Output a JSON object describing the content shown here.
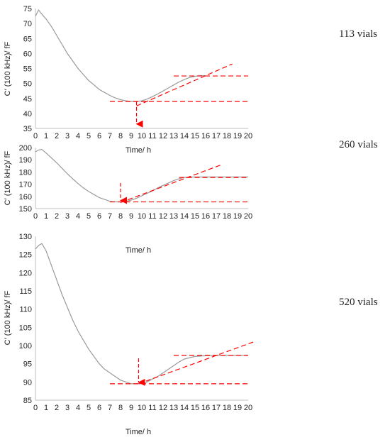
{
  "chart_data": [
    {
      "type": "line",
      "title": "",
      "label": "113 vials",
      "xlabel": "Time/ h",
      "ylabel": "C′ (100 kHz)/ fF",
      "xlim": [
        0,
        20
      ],
      "ylim": [
        35,
        75
      ],
      "xticks": [
        0,
        1,
        2,
        3,
        4,
        5,
        6,
        7,
        8,
        9,
        10,
        11,
        12,
        13,
        14,
        15,
        16,
        17,
        18,
        19,
        20
      ],
      "yticks": [
        35,
        40,
        45,
        50,
        55,
        60,
        65,
        70,
        75
      ],
      "grid": false,
      "series": [
        {
          "color": "#9a9a9a",
          "x": [
            0,
            0.3,
            0.5,
            1,
            1.5,
            2,
            2.5,
            3,
            3.5,
            4,
            4.5,
            5,
            5.5,
            6,
            6.5,
            7,
            7.5,
            8,
            8.5,
            9,
            9.5,
            10,
            10.5,
            11,
            11.5,
            12,
            12.5,
            13,
            13.5,
            14,
            14.5,
            15,
            15.5,
            16
          ],
          "y": [
            72.5,
            74.5,
            73.5,
            71.5,
            69,
            66,
            63,
            60,
            57.5,
            55,
            53,
            51,
            49.5,
            48,
            47,
            46,
            45.2,
            44.6,
            44.2,
            44,
            44,
            44.2,
            44.8,
            45.6,
            46.5,
            47.5,
            48.5,
            49.5,
            50.5,
            51.3,
            52,
            52.4,
            52.6,
            52.6
          ]
        }
      ],
      "annotations": {
        "color": "#ff0000",
        "hlines": [
          {
            "y": 44,
            "x": [
              7,
              20
            ]
          },
          {
            "y": 52.5,
            "x": [
              13,
              20
            ]
          }
        ],
        "tangent": {
          "x": [
            9.5,
            18.5
          ],
          "y": [
            42.5,
            56.5
          ]
        },
        "arrow": {
          "x": 9.5,
          "y_from": 44,
          "y_to": 36
        }
      }
    },
    {
      "type": "line",
      "title": "",
      "label": "260 vials",
      "xlabel": "Time/ h",
      "ylabel": "C′ (100 kHz)/ fF",
      "xlim": [
        0,
        20
      ],
      "ylim": [
        150,
        200
      ],
      "xticks": [
        0,
        1,
        2,
        3,
        4,
        5,
        6,
        7,
        8,
        9,
        10,
        11,
        12,
        13,
        14,
        15,
        16,
        17,
        18,
        19,
        20
      ],
      "yticks": [
        150,
        160,
        170,
        180,
        190,
        200
      ],
      "grid": false,
      "series": [
        {
          "color": "#9a9a9a",
          "x": [
            0,
            0.3,
            0.6,
            1,
            1.5,
            2,
            2.5,
            3,
            3.5,
            4,
            4.5,
            5,
            5.5,
            6,
            6.5,
            7,
            7.5,
            8,
            8.5,
            9,
            9.5,
            10,
            10.5,
            11,
            11.5,
            12,
            12.5,
            13,
            13.5,
            14,
            15,
            16,
            17,
            18,
            19,
            20
          ],
          "y": [
            196.5,
            198,
            198.5,
            195.5,
            191.5,
            187.5,
            183,
            178.5,
            174.5,
            170.5,
            167,
            164,
            161.5,
            159,
            157.5,
            156,
            155.5,
            155.5,
            156,
            157,
            158.5,
            160.5,
            162.5,
            164.5,
            167,
            169,
            171,
            173,
            174.5,
            175.5,
            176,
            176,
            176,
            176,
            176,
            176
          ]
        }
      ],
      "annotations": {
        "color": "#ff0000",
        "hlines": [
          {
            "y": 155.5,
            "x": [
              7,
              20
            ]
          },
          {
            "y": 175.5,
            "x": [
              13.5,
              20
            ]
          }
        ],
        "tangent": {
          "x": [
            8,
            17.5
          ],
          "y": [
            155,
            186
          ]
        },
        "arrow": {
          "x": 8,
          "y_from": 171,
          "y_to": 155.5
        }
      }
    },
    {
      "type": "line",
      "title": "",
      "label": "520 vials",
      "xlabel": "Time/ h",
      "ylabel": "C′ (100 kHz)/ fF",
      "xlim": [
        0,
        20
      ],
      "ylim": [
        85,
        130
      ],
      "xticks": [
        0,
        1,
        2,
        3,
        4,
        5,
        6,
        7,
        8,
        9,
        10,
        11,
        12,
        13,
        14,
        15,
        16,
        17,
        18,
        19,
        20
      ],
      "yticks": [
        85,
        90,
        95,
        100,
        105,
        110,
        115,
        120,
        125,
        130
      ],
      "grid": false,
      "series": [
        {
          "color": "#9a9a9a",
          "x": [
            0,
            0.3,
            0.6,
            1,
            1.5,
            2,
            2.5,
            3,
            3.5,
            4,
            4.5,
            5,
            5.5,
            6,
            6.5,
            7,
            7.5,
            8,
            8.5,
            9,
            9.5,
            10,
            10.5,
            11,
            11.5,
            12,
            12.5,
            13,
            13.5,
            14,
            15,
            16,
            17,
            18,
            19,
            20
          ],
          "y": [
            126.5,
            127.5,
            128,
            126,
            122,
            118,
            114,
            110.5,
            107,
            104,
            101.5,
            99,
            97,
            95,
            93.5,
            92.5,
            91.5,
            90.5,
            90,
            89.5,
            89.5,
            89.5,
            90,
            90.8,
            91.5,
            92.5,
            93.5,
            94.5,
            95.5,
            96.3,
            97,
            97.2,
            97.3,
            97.3,
            97.3,
            97.3
          ]
        }
      ],
      "annotations": {
        "color": "#ff0000",
        "hlines": [
          {
            "y": 89.5,
            "x": [
              7,
              20
            ]
          },
          {
            "y": 97.3,
            "x": [
              13,
              20
            ]
          }
        ],
        "tangent": {
          "x": [
            9.7,
            20.5
          ],
          "y": [
            89.5,
            101
          ]
        },
        "arrow": {
          "x": 9.7,
          "y_from": 96.5,
          "y_to": 89.5
        }
      }
    }
  ]
}
